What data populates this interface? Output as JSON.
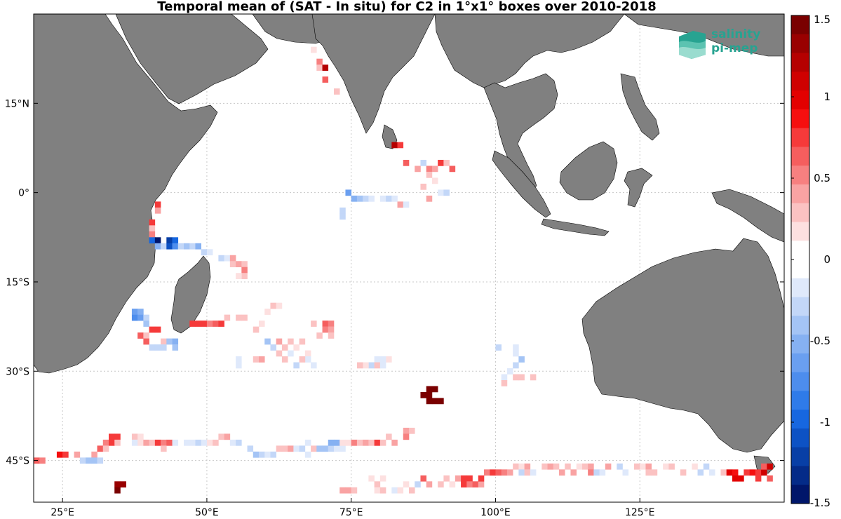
{
  "title": "Temporal mean of (SAT - In situ) for C2 in 1°x1° boxes over 2010-2018",
  "logo": {
    "line1": "salinity",
    "line2": "pi-mep",
    "color": "#27a391"
  },
  "map": {
    "land_color": "#808080",
    "ocean_color": "#ffffff",
    "grid_color": "#c8c8c8",
    "lon_range": [
      20,
      150
    ],
    "lat_range": [
      -52,
      30
    ],
    "lon_ticks": [
      {
        "lon": 25,
        "label": "25°E"
      },
      {
        "lon": 50,
        "label": "50°E"
      },
      {
        "lon": 75,
        "label": "75°E"
      },
      {
        "lon": 100,
        "label": "100°E"
      },
      {
        "lon": 125,
        "label": "125°E"
      }
    ],
    "lat_ticks": [
      {
        "lat": 15,
        "label": "15°N"
      },
      {
        "lat": 0,
        "label": "0°"
      },
      {
        "lat": -15,
        "label": "15°S"
      },
      {
        "lat": -30,
        "label": "30°S"
      },
      {
        "lat": -45,
        "label": "45°S"
      }
    ]
  },
  "colorbar": {
    "min": -1.5,
    "max": 1.5,
    "ticks": [
      "1.5",
      "1",
      "0.5",
      "0",
      "-0.5",
      "-1",
      "-1.5"
    ],
    "tick_values": [
      1.5,
      1,
      0.5,
      0,
      -0.5,
      -1,
      -1.5
    ],
    "colors": [
      "#7a0000",
      "#990000",
      "#b50000",
      "#cf0000",
      "#e30000",
      "#f50f0f",
      "#f53a3a",
      "#f55e5e",
      "#f78080",
      "#f9a3a3",
      "#fbc2c2",
      "#fde0e0",
      "#ffffff",
      "#ffffff",
      "#dfe9fb",
      "#c3d7f8",
      "#a4c4f5",
      "#86b1f2",
      "#6a9ff0",
      "#4d8ded",
      "#2f7be9",
      "#1767e0",
      "#0d52c4",
      "#083fa6",
      "#042b88",
      "#00166a"
    ]
  },
  "chart_data": {
    "type": "heatmap",
    "title": "Temporal mean of (SAT - In situ) for C2 in 1°x1° boxes over 2010-2018",
    "value_units": "",
    "cells": [
      [
        69,
        22,
        0.5
      ],
      [
        69,
        21,
        0.3
      ],
      [
        70,
        21,
        1.2
      ],
      [
        68,
        24,
        0.2
      ],
      [
        70,
        19,
        0.6
      ],
      [
        72,
        17,
        0.3
      ],
      [
        82,
        8,
        1.2
      ],
      [
        83,
        8,
        0.8
      ],
      [
        84,
        5,
        0.6
      ],
      [
        87,
        5,
        -0.3
      ],
      [
        88,
        4,
        0.5
      ],
      [
        89,
        4,
        0.4
      ],
      [
        90,
        5,
        0.8
      ],
      [
        91,
        5,
        0.3
      ],
      [
        92,
        4,
        0.6
      ],
      [
        86,
        4,
        0.4
      ],
      [
        88,
        3,
        0.3
      ],
      [
        89,
        2,
        0.2
      ],
      [
        87,
        1,
        0.3
      ],
      [
        88,
        -1,
        0.4
      ],
      [
        90,
        0,
        -0.2
      ],
      [
        91,
        0,
        -0.3
      ],
      [
        74,
        0,
        -0.6
      ],
      [
        75,
        -1,
        -0.5
      ],
      [
        76,
        -1,
        -0.4
      ],
      [
        77,
        -1,
        -0.3
      ],
      [
        78,
        -1,
        -0.2
      ],
      [
        80,
        -1,
        -0.2
      ],
      [
        81,
        -1,
        -0.3
      ],
      [
        82,
        -1,
        -0.2
      ],
      [
        83,
        -2,
        0.4
      ],
      [
        84,
        -2,
        -0.2
      ],
      [
        73,
        -3,
        -0.3
      ],
      [
        73,
        -4,
        -0.3
      ],
      [
        41,
        -2,
        0.8
      ],
      [
        41,
        -3,
        0.4
      ],
      [
        40,
        -5,
        0.7
      ],
      [
        40,
        -6,
        0.3
      ],
      [
        40,
        -7,
        0.5
      ],
      [
        40,
        -8,
        -1.0
      ],
      [
        41,
        -8,
        -1.4
      ],
      [
        41,
        -9,
        -0.5
      ],
      [
        42,
        -9,
        -0.3
      ],
      [
        43,
        -8,
        -1.2
      ],
      [
        44,
        -8,
        -1.0
      ],
      [
        43,
        -9,
        -1.1
      ],
      [
        44,
        -9,
        -0.8
      ],
      [
        45,
        -9,
        -0.3
      ],
      [
        46,
        -9,
        -0.4
      ],
      [
        47,
        -9,
        -0.3
      ],
      [
        48,
        -9,
        -0.5
      ],
      [
        49,
        -10,
        -0.3
      ],
      [
        50,
        -10,
        -0.2
      ],
      [
        52,
        -11,
        -0.3
      ],
      [
        53,
        -11,
        -0.2
      ],
      [
        54,
        -11,
        0.4
      ],
      [
        54,
        -12,
        0.3
      ],
      [
        55,
        -12,
        0.4
      ],
      [
        56,
        -12,
        0.3
      ],
      [
        56,
        -13,
        0.5
      ],
      [
        56,
        -14,
        0.3
      ],
      [
        55,
        -14,
        0.2
      ],
      [
        37,
        -20,
        -0.6
      ],
      [
        38,
        -20,
        -0.5
      ],
      [
        37,
        -21,
        -0.7
      ],
      [
        38,
        -21,
        -0.6
      ],
      [
        39,
        -21,
        -0.3
      ],
      [
        39,
        -22,
        -0.4
      ],
      [
        38,
        -24,
        0.6
      ],
      [
        39,
        -24,
        0.3
      ],
      [
        40,
        -23,
        0.8
      ],
      [
        41,
        -23,
        0.8
      ],
      [
        39,
        -25,
        0.6
      ],
      [
        40,
        -26,
        -0.3
      ],
      [
        41,
        -26,
        -0.3
      ],
      [
        42,
        -25,
        0.3
      ],
      [
        43,
        -25,
        -0.4
      ],
      [
        44,
        -25,
        -0.5
      ],
      [
        44,
        -26,
        -0.4
      ],
      [
        42,
        -26,
        -0.3
      ],
      [
        47,
        -22,
        0.7
      ],
      [
        48,
        -22,
        0.8
      ],
      [
        49,
        -22,
        0.7
      ],
      [
        50,
        -22,
        0.5
      ],
      [
        51,
        -22,
        0.6
      ],
      [
        52,
        -22,
        0.8
      ],
      [
        53,
        -21,
        0.3
      ],
      [
        55,
        -21,
        0.3
      ],
      [
        56,
        -21,
        0.3
      ],
      [
        60,
        -20,
        0.2
      ],
      [
        61,
        -19,
        0.3
      ],
      [
        62,
        -19,
        0.2
      ],
      [
        59,
        -22,
        0.2
      ],
      [
        58,
        -23,
        0.3
      ],
      [
        68,
        -22,
        0.3
      ],
      [
        70,
        -22,
        0.6
      ],
      [
        71,
        -22,
        0.5
      ],
      [
        70,
        -23,
        0.5
      ],
      [
        71,
        -23,
        0.4
      ],
      [
        69,
        -24,
        0.3
      ],
      [
        71,
        -24,
        0.3
      ],
      [
        60,
        -25,
        -0.4
      ],
      [
        61,
        -26,
        -0.3
      ],
      [
        62,
        -25,
        0.4
      ],
      [
        63,
        -26,
        0.3
      ],
      [
        64,
        -25,
        0.3
      ],
      [
        65,
        -26,
        0.2
      ],
      [
        66,
        -25,
        0.3
      ],
      [
        62,
        -27,
        0.3
      ],
      [
        64,
        -27,
        -0.2
      ],
      [
        67,
        -27,
        0.2
      ],
      [
        67,
        -28,
        -0.2
      ],
      [
        66,
        -28,
        0.3
      ],
      [
        55,
        -28,
        -0.2
      ],
      [
        55,
        -29,
        -0.2
      ],
      [
        58,
        -28,
        0.3
      ],
      [
        59,
        -28,
        0.4
      ],
      [
        63,
        -28,
        0.3
      ],
      [
        65,
        -29,
        -0.3
      ],
      [
        68,
        -29,
        -0.2
      ],
      [
        79,
        -28,
        -0.2
      ],
      [
        78,
        -29,
        -0.3
      ],
      [
        79,
        -29,
        0.3
      ],
      [
        80,
        -29,
        -0.2
      ],
      [
        81,
        -28,
        0.2
      ],
      [
        77,
        -29,
        0.2
      ],
      [
        76,
        -29,
        0.3
      ],
      [
        80,
        -28,
        -0.2
      ],
      [
        100,
        -26,
        -0.3
      ],
      [
        103,
        -26,
        -0.2
      ],
      [
        103,
        -27,
        -0.2
      ],
      [
        104,
        -28,
        -0.4
      ],
      [
        103,
        -29,
        -0.3
      ],
      [
        102,
        -30,
        -0.2
      ],
      [
        101,
        -31,
        -0.2
      ],
      [
        104,
        -31,
        0.3
      ],
      [
        103,
        -31,
        0.3
      ],
      [
        106,
        -31,
        0.3
      ],
      [
        101,
        -32,
        0.3
      ],
      [
        88,
        -33,
        1.5
      ],
      [
        89,
        -33,
        1.5
      ],
      [
        87,
        -34,
        1.5
      ],
      [
        88,
        -34,
        1.5
      ],
      [
        88,
        -35,
        1.5
      ],
      [
        89,
        -35,
        1.5
      ],
      [
        90,
        -35,
        1.5
      ],
      [
        84,
        -40,
        0.4
      ],
      [
        85,
        -40,
        0.3
      ],
      [
        84,
        -41,
        0.5
      ],
      [
        33,
        -41,
        0.8
      ],
      [
        34,
        -41,
        0.7
      ],
      [
        32,
        -42,
        0.5
      ],
      [
        33,
        -42,
        0.7
      ],
      [
        34,
        -42,
        0.3
      ],
      [
        31,
        -43,
        0.6
      ],
      [
        32,
        -43,
        0.3
      ],
      [
        30,
        -44,
        0.4
      ],
      [
        30,
        -45,
        -0.4
      ],
      [
        31,
        -45,
        -0.3
      ],
      [
        37,
        -41,
        0.3
      ],
      [
        38,
        -41,
        0.2
      ],
      [
        37,
        -42,
        -0.2
      ],
      [
        38,
        -42,
        0.2
      ],
      [
        39,
        -42,
        0.4
      ],
      [
        40,
        -42,
        0.3
      ],
      [
        41,
        -42,
        0.7
      ],
      [
        42,
        -42,
        0.5
      ],
      [
        43,
        -42,
        0.6
      ],
      [
        44,
        -42,
        -0.2
      ],
      [
        42,
        -43,
        0.3
      ],
      [
        46,
        -42,
        -0.2
      ],
      [
        47,
        -42,
        -0.2
      ],
      [
        48,
        -42,
        -0.3
      ],
      [
        49,
        -42,
        -0.2
      ],
      [
        50,
        -42,
        0.2
      ],
      [
        51,
        -42,
        0.3
      ],
      [
        52,
        -41,
        0.3
      ],
      [
        53,
        -41,
        0.4
      ],
      [
        54,
        -42,
        -0.2
      ],
      [
        55,
        -42,
        -0.3
      ],
      [
        57,
        -43,
        -0.3
      ],
      [
        58,
        -44,
        -0.4
      ],
      [
        59,
        -44,
        -0.3
      ],
      [
        60,
        -44,
        -0.2
      ],
      [
        61,
        -44,
        -0.3
      ],
      [
        62,
        -43,
        0.3
      ],
      [
        63,
        -43,
        0.3
      ],
      [
        64,
        -43,
        0.4
      ],
      [
        65,
        -43,
        -0.2
      ],
      [
        66,
        -43,
        -0.3
      ],
      [
        67,
        -42,
        -0.2
      ],
      [
        67,
        -44,
        -0.2
      ],
      [
        68,
        -43,
        0.3
      ],
      [
        69,
        -43,
        -0.4
      ],
      [
        70,
        -43,
        -0.4
      ],
      [
        71,
        -43,
        -0.3
      ],
      [
        72,
        -43,
        -0.2
      ],
      [
        73,
        -43,
        -0.2
      ],
      [
        71,
        -42,
        -0.5
      ],
      [
        72,
        -42,
        -0.5
      ],
      [
        73,
        -42,
        0.2
      ],
      [
        74,
        -42,
        0.2
      ],
      [
        75,
        -42,
        0.5
      ],
      [
        76,
        -42,
        0.3
      ],
      [
        77,
        -42,
        0.4
      ],
      [
        78,
        -42,
        0.3
      ],
      [
        79,
        -42,
        0.7
      ],
      [
        80,
        -42,
        0.3
      ],
      [
        81,
        -41,
        0.3
      ],
      [
        82,
        -42,
        0.4
      ],
      [
        20,
        -45,
        0.6
      ],
      [
        21,
        -45,
        0.5
      ],
      [
        24,
        -44,
        0.9
      ],
      [
        25,
        -44,
        0.8
      ],
      [
        27,
        -44,
        0.4
      ],
      [
        28,
        -45,
        -0.3
      ],
      [
        29,
        -45,
        -0.4
      ],
      [
        34,
        -49,
        1.3
      ],
      [
        35,
        -49,
        1.3
      ],
      [
        34,
        -50,
        1.5
      ],
      [
        73,
        -50,
        0.4
      ],
      [
        74,
        -50,
        0.4
      ],
      [
        75,
        -50,
        0.3
      ],
      [
        78,
        -48,
        0.2
      ],
      [
        79,
        -49,
        0.3
      ],
      [
        80,
        -48,
        0.2
      ],
      [
        79,
        -50,
        0.2
      ],
      [
        80,
        -50,
        0.3
      ],
      [
        82,
        -50,
        -0.2
      ],
      [
        83,
        -50,
        0.2
      ],
      [
        84,
        -49,
        0.2
      ],
      [
        85,
        -50,
        0.3
      ],
      [
        86,
        -49,
        -0.3
      ],
      [
        87,
        -48,
        0.6
      ],
      [
        88,
        -49,
        0.4
      ],
      [
        90,
        -49,
        0.3
      ],
      [
        91,
        -48,
        0.3
      ],
      [
        92,
        -49,
        0.2
      ],
      [
        93,
        -48,
        0.4
      ],
      [
        94,
        -48,
        0.7
      ],
      [
        95,
        -48,
        0.8
      ],
      [
        94,
        -49,
        0.7
      ],
      [
        95,
        -49,
        0.5
      ],
      [
        96,
        -49,
        0.6
      ],
      [
        97,
        -49,
        0.4
      ],
      [
        97,
        -48,
        0.8
      ],
      [
        98,
        -47,
        0.5
      ],
      [
        99,
        -47,
        0.7
      ],
      [
        100,
        -47,
        0.6
      ],
      [
        101,
        -47,
        0.5
      ],
      [
        102,
        -47,
        0.4
      ],
      [
        103,
        -46,
        0.3
      ],
      [
        104,
        -46,
        0.2
      ],
      [
        104,
        -47,
        -0.3
      ],
      [
        105,
        -46,
        0.4
      ],
      [
        105,
        -47,
        0.3
      ],
      [
        106,
        -47,
        -0.2
      ],
      [
        108,
        -46,
        0.3
      ],
      [
        109,
        -46,
        0.4
      ],
      [
        110,
        -46,
        0.3
      ],
      [
        111,
        -47,
        0.4
      ],
      [
        112,
        -46,
        0.3
      ],
      [
        113,
        -47,
        0.4
      ],
      [
        114,
        -46,
        0.2
      ],
      [
        115,
        -46,
        0.3
      ],
      [
        116,
        -46,
        0.4
      ],
      [
        116,
        -47,
        0.5
      ],
      [
        117,
        -47,
        -0.3
      ],
      [
        118,
        -47,
        -0.2
      ],
      [
        119,
        -46,
        0.4
      ],
      [
        121,
        -46,
        -0.3
      ],
      [
        122,
        -47,
        -0.2
      ],
      [
        124,
        -46,
        0.3
      ],
      [
        125,
        -46,
        0.2
      ],
      [
        126,
        -46,
        0.4
      ],
      [
        126,
        -47,
        0.3
      ],
      [
        127,
        -47,
        0.3
      ],
      [
        129,
        -46,
        0.2
      ],
      [
        130,
        -46,
        0.3
      ],
      [
        132,
        -47,
        0.3
      ],
      [
        134,
        -46,
        0.2
      ],
      [
        135,
        -47,
        -0.3
      ],
      [
        136,
        -46,
        -0.3
      ],
      [
        137,
        -47,
        -0.2
      ],
      [
        139,
        -47,
        0.3
      ],
      [
        140,
        -47,
        1.0
      ],
      [
        141,
        -47,
        0.9
      ],
      [
        141,
        -48,
        1.0
      ],
      [
        142,
        -48,
        1.0
      ],
      [
        143,
        -47,
        0.8
      ],
      [
        144,
        -47,
        0.9
      ],
      [
        145,
        -47,
        0.7
      ],
      [
        146,
        -47,
        1.1
      ],
      [
        146,
        -46,
        0.6
      ],
      [
        147,
        -46,
        1.1
      ],
      [
        145,
        -48,
        0.8
      ],
      [
        147,
        -48,
        0.6
      ]
    ]
  }
}
